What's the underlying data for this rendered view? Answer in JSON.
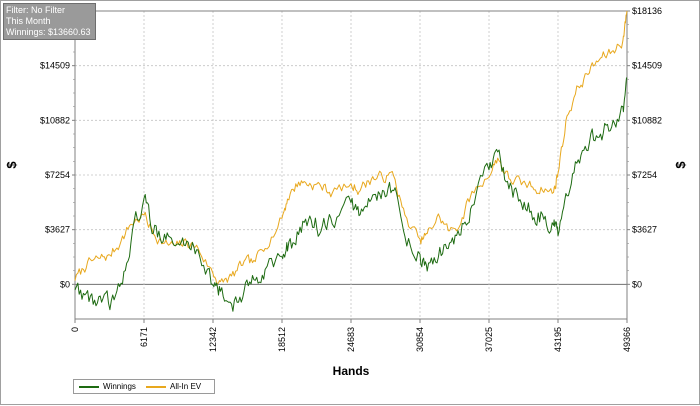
{
  "info": {
    "filter": "Filter: No Filter",
    "period": "This Month",
    "winnings": "Winnings: $13660.63"
  },
  "colors": {
    "winnings": "#1e6b12",
    "allin": "#e8a81e",
    "grid": "#c4c4c4",
    "zero_line": "#707070"
  },
  "chart_data": {
    "type": "line",
    "xlabel": "Hands",
    "ylabel": "$",
    "ylabel_right": "$",
    "x_ticks": [
      0,
      6171,
      12342,
      18512,
      24683,
      30854,
      37025,
      43195,
      49366
    ],
    "x_tick_labels": [
      "0",
      "6171",
      "12342",
      "18512",
      "24683",
      "30854",
      "37025",
      "43195",
      "49366"
    ],
    "xlim": [
      0,
      49366
    ],
    "y_ticks": [
      0,
      3627,
      7254,
      10882,
      14509,
      18136
    ],
    "y_tick_labels": [
      "$0",
      "$3627",
      "$7254",
      "$10882",
      "$14509",
      "$18136"
    ],
    "ylim": [
      -2300,
      18136
    ],
    "grid": true,
    "legend_position": "bottom-left",
    "series": [
      {
        "name": "Winnings",
        "color": "#1e6b12",
        "x": [
          0,
          1000,
          2000,
          3000,
          4000,
          5000,
          6171,
          7000,
          8000,
          9000,
          10000,
          11000,
          12342,
          13000,
          14000,
          15000,
          16000,
          17000,
          18512,
          19000,
          20000,
          21000,
          22000,
          23000,
          24683,
          25500,
          26500,
          27500,
          28500,
          29500,
          30854,
          31500,
          32500,
          33500,
          34500,
          35500,
          37025,
          37800,
          38800,
          39800,
          40800,
          41800,
          42800,
          43195,
          44000,
          45000,
          46000,
          47000,
          48000,
          49000,
          49366
        ],
        "y": [
          -300,
          -700,
          -1200,
          -1400,
          -400,
          3000,
          5700,
          3600,
          3300,
          2500,
          2800,
          2400,
          0,
          -600,
          -1300,
          -900,
          300,
          1200,
          1800,
          2200,
          3300,
          4600,
          3600,
          4100,
          5400,
          4600,
          5600,
          6400,
          6300,
          3200,
          1900,
          900,
          1900,
          2800,
          3300,
          5200,
          7600,
          8700,
          6200,
          5600,
          4800,
          4600,
          3900,
          3200,
          5600,
          8200,
          9600,
          10000,
          10500,
          11600,
          13660
        ]
      },
      {
        "name": "All-In EV",
        "color": "#e8a81e",
        "x": [
          0,
          1000,
          2000,
          3000,
          4000,
          5000,
          6171,
          7000,
          8000,
          9000,
          10000,
          11000,
          12342,
          13000,
          14000,
          15000,
          16000,
          17000,
          18512,
          19000,
          20000,
          21000,
          22000,
          23000,
          24683,
          25500,
          26500,
          27500,
          28500,
          29500,
          30854,
          31500,
          32500,
          33500,
          34500,
          35500,
          37025,
          37800,
          38800,
          39800,
          40800,
          41800,
          42800,
          43195,
          44000,
          45000,
          46000,
          47000,
          48000,
          49000,
          49366
        ],
        "y": [
          300,
          1200,
          1700,
          1900,
          2700,
          4000,
          4600,
          3400,
          2700,
          2500,
          2800,
          2400,
          700,
          100,
          500,
          1300,
          1500,
          2500,
          4400,
          5700,
          6800,
          6700,
          6500,
          6100,
          6600,
          6300,
          7000,
          7100,
          7200,
          4500,
          2900,
          3300,
          4600,
          3500,
          4100,
          6100,
          7200,
          8400,
          7000,
          6800,
          6500,
          6300,
          6100,
          7400,
          11200,
          13100,
          14100,
          15000,
          15400,
          16200,
          18136
        ]
      }
    ]
  },
  "legend": {
    "winnings_label": "Winnings",
    "allin_label": "All-In EV"
  }
}
